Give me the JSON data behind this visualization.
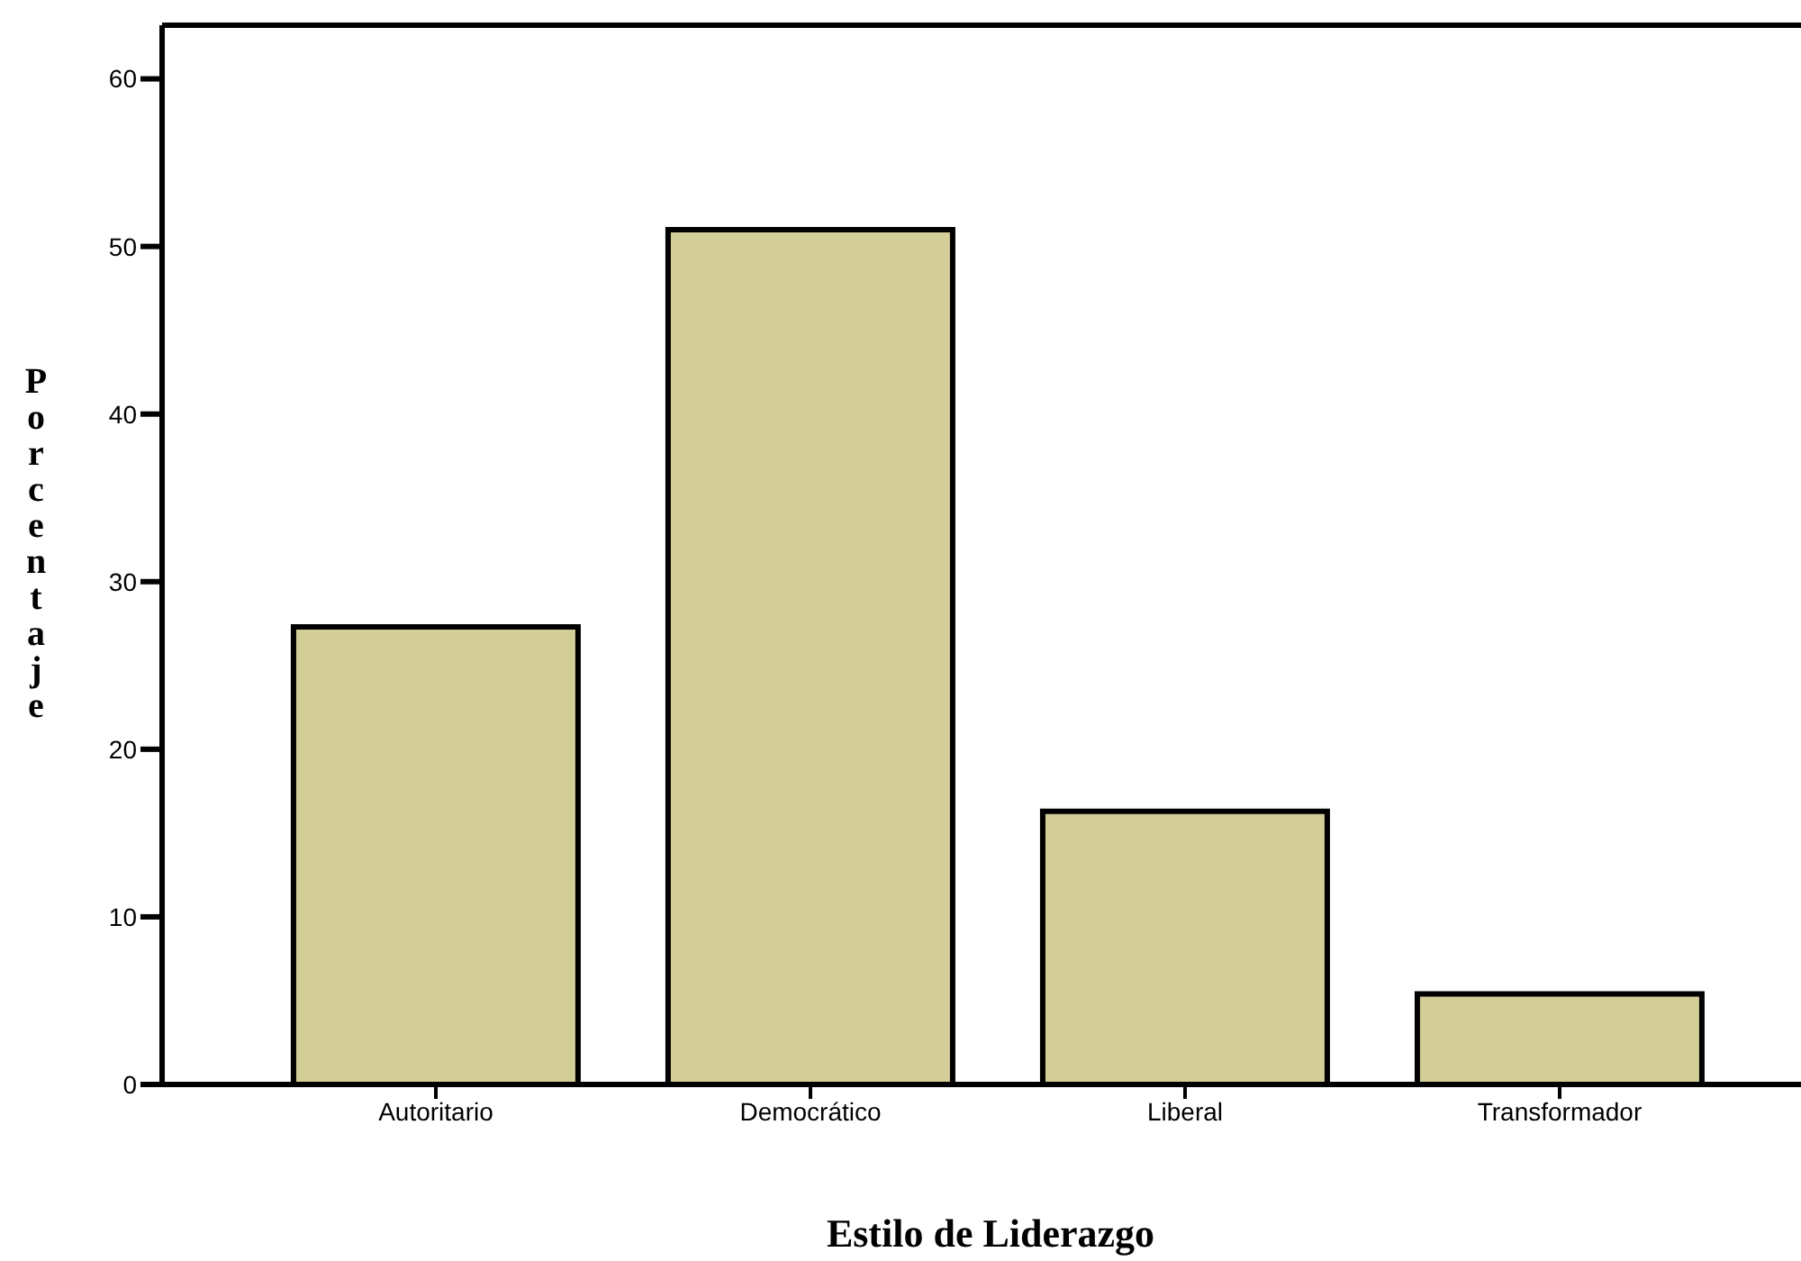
{
  "chart_data": {
    "type": "bar",
    "xlabel": "Estilo de Liderazgo",
    "ylabel": "Porcentaje",
    "categories": [
      "Autoritario",
      "Democrático",
      "Liberal",
      "Transformador"
    ],
    "values": [
      27.3,
      51.0,
      16.3,
      5.4
    ],
    "color": "#d3cd98",
    "ylim": [
      0,
      63.2
    ],
    "yticks": [
      0,
      10,
      20,
      30,
      40,
      50,
      60
    ]
  }
}
